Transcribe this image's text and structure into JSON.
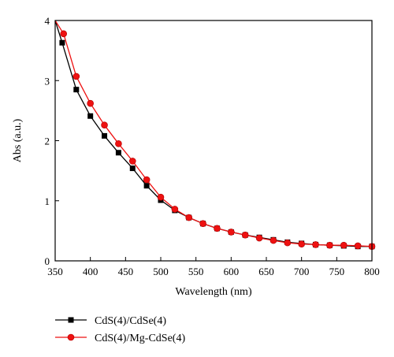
{
  "chart_data": {
    "type": "line",
    "xlabel": "Wavelength (nm)",
    "ylabel": "Abs (a.u.)",
    "xlim": [
      350,
      800
    ],
    "ylim": [
      0,
      4
    ],
    "x_ticks": [
      350,
      400,
      450,
      500,
      550,
      600,
      650,
      700,
      750,
      800
    ],
    "y_ticks": [
      0,
      1,
      2,
      3,
      4
    ],
    "grid": false,
    "legend_position": "below-plot-left",
    "series": [
      {
        "name": "CdS(4)/CdSe(4)",
        "color": "#000000",
        "marker": "square",
        "values": [
          [
            350,
            4.0
          ],
          [
            360,
            3.63
          ],
          [
            380,
            2.85
          ],
          [
            400,
            2.41
          ],
          [
            420,
            2.08
          ],
          [
            440,
            1.8
          ],
          [
            460,
            1.54
          ],
          [
            480,
            1.25
          ],
          [
            500,
            1.01
          ],
          [
            520,
            0.84
          ],
          [
            540,
            0.72
          ],
          [
            560,
            0.62
          ],
          [
            580,
            0.54
          ],
          [
            600,
            0.48
          ],
          [
            620,
            0.43
          ],
          [
            640,
            0.39
          ],
          [
            660,
            0.35
          ],
          [
            680,
            0.31
          ],
          [
            700,
            0.29
          ],
          [
            720,
            0.27
          ],
          [
            740,
            0.26
          ],
          [
            760,
            0.25
          ],
          [
            780,
            0.24
          ],
          [
            800,
            0.24
          ]
        ]
      },
      {
        "name": "CdS(4)/Mg-CdSe(4)",
        "color": "#ee1111",
        "marker": "circle",
        "values": [
          [
            350,
            4.0
          ],
          [
            362,
            3.78
          ],
          [
            380,
            3.07
          ],
          [
            400,
            2.62
          ],
          [
            420,
            2.26
          ],
          [
            440,
            1.95
          ],
          [
            460,
            1.66
          ],
          [
            480,
            1.35
          ],
          [
            500,
            1.06
          ],
          [
            520,
            0.86
          ],
          [
            540,
            0.72
          ],
          [
            560,
            0.62
          ],
          [
            580,
            0.54
          ],
          [
            600,
            0.48
          ],
          [
            620,
            0.43
          ],
          [
            640,
            0.38
          ],
          [
            660,
            0.34
          ],
          [
            680,
            0.3
          ],
          [
            700,
            0.28
          ],
          [
            720,
            0.27
          ],
          [
            740,
            0.26
          ],
          [
            760,
            0.26
          ],
          [
            780,
            0.25
          ],
          [
            800,
            0.24
          ]
        ]
      }
    ]
  }
}
